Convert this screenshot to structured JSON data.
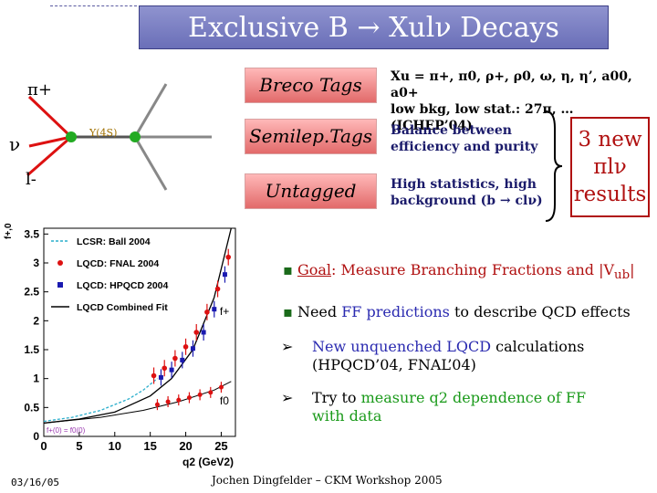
{
  "slide": {
    "title": "Exclusive B → Xulν Decays",
    "date": "03/16/05",
    "author_line": "Jochen Dingfelder – CKM Workshop 2005"
  },
  "diagram": {
    "pi_label": "π+",
    "nu_label": "ν",
    "lepton_label": "l-",
    "upsilon_label": "Υ(4S)"
  },
  "tags": [
    {
      "label": "Breco Tags",
      "desc": [
        "Xu = π+, π0, ρ+, ρ0, ω, η, η’, a00, a0+",
        "low bkg, low stat.: 27π, … (ICHEP’04)"
      ]
    },
    {
      "label": "Semilep.Tags",
      "desc": [
        "Balance between",
        "efficiency and purity"
      ]
    },
    {
      "label": "Untagged",
      "desc": [
        "High statistics, high",
        "background (b → clν)"
      ]
    }
  ],
  "results_box": {
    "line1": "3 new",
    "line2": "πlν",
    "line3": "results"
  },
  "bullets": [
    {
      "prefix": "Goal",
      "text": ": Measure Branching Fractions and |V",
      "sub": "ub",
      "tail": "|"
    },
    {
      "pre": "Need ",
      "hl": "FF predictions",
      "post": " to describe QCD effects"
    }
  ],
  "sub_bullets": [
    {
      "pre": "",
      "hl": "New unquenched LQCD",
      "post": " calculations",
      "line2": "(HPQCD’04, FNAL’04)"
    },
    {
      "pre": "Try to ",
      "hl": "measure q2 dependence of FF",
      "post": "",
      "line2": "with data"
    }
  ],
  "colors": {
    "accent_red": "#b01010",
    "green": "#1a9a1a",
    "blue": "#2a2ab0",
    "title_bg": "#7a7fc4",
    "tag_box": "#f29a9a"
  },
  "chart_data": {
    "type": "line",
    "ylabel": "f+,0",
    "xlabel": "q2 (GeV2)",
    "xlim": [
      0,
      27
    ],
    "ylim": [
      0,
      3.6
    ],
    "x_ticks": [
      "0",
      "5",
      "10",
      "15",
      "20",
      "25"
    ],
    "y_ticks": [
      "0",
      "0.5",
      "1",
      "1.5",
      "2",
      "2.5",
      "3",
      "3.5"
    ],
    "legend": [
      "LCSR: Ball 2004",
      "LQCD: FNAL 2004",
      "LQCD: HPQCD 2004",
      "LQCD Combined Fit"
    ],
    "curve_labels": {
      "fplus": "f+",
      "fzero": "f0"
    },
    "annotation": "f+(0) = f0(0)",
    "series": [
      {
        "name": "LCSR: Ball 2004",
        "x": [
          0,
          4,
          8,
          12,
          14,
          16
        ],
        "y": [
          0.26,
          0.33,
          0.45,
          0.65,
          0.8,
          1.0
        ]
      },
      {
        "name": "LQCD: FNAL 2004",
        "x": [
          15.5,
          17,
          18.5,
          20,
          21.5,
          23,
          24.5,
          26
        ],
        "y": [
          1.05,
          1.18,
          1.35,
          1.55,
          1.8,
          2.15,
          2.55,
          3.1
        ]
      },
      {
        "name": "LQCD: HPQCD 2004",
        "x": [
          16,
          17.5,
          19,
          20.5,
          22,
          23.5,
          25
        ],
        "y": [
          1.02,
          1.15,
          1.32,
          1.52,
          1.8,
          2.2,
          2.8
        ]
      },
      {
        "name": "LQCD Combined Fit",
        "x": [
          0,
          5,
          10,
          15,
          18,
          21,
          24,
          26.4
        ],
        "y": [
          0.23,
          0.3,
          0.42,
          0.7,
          1.0,
          1.5,
          2.4,
          3.6
        ]
      }
    ],
    "f0_points": {
      "x": [
        16,
        17.5,
        19,
        20.5,
        22,
        23.5,
        25
      ],
      "y": [
        0.55,
        0.6,
        0.63,
        0.67,
        0.72,
        0.76,
        0.85
      ]
    }
  }
}
